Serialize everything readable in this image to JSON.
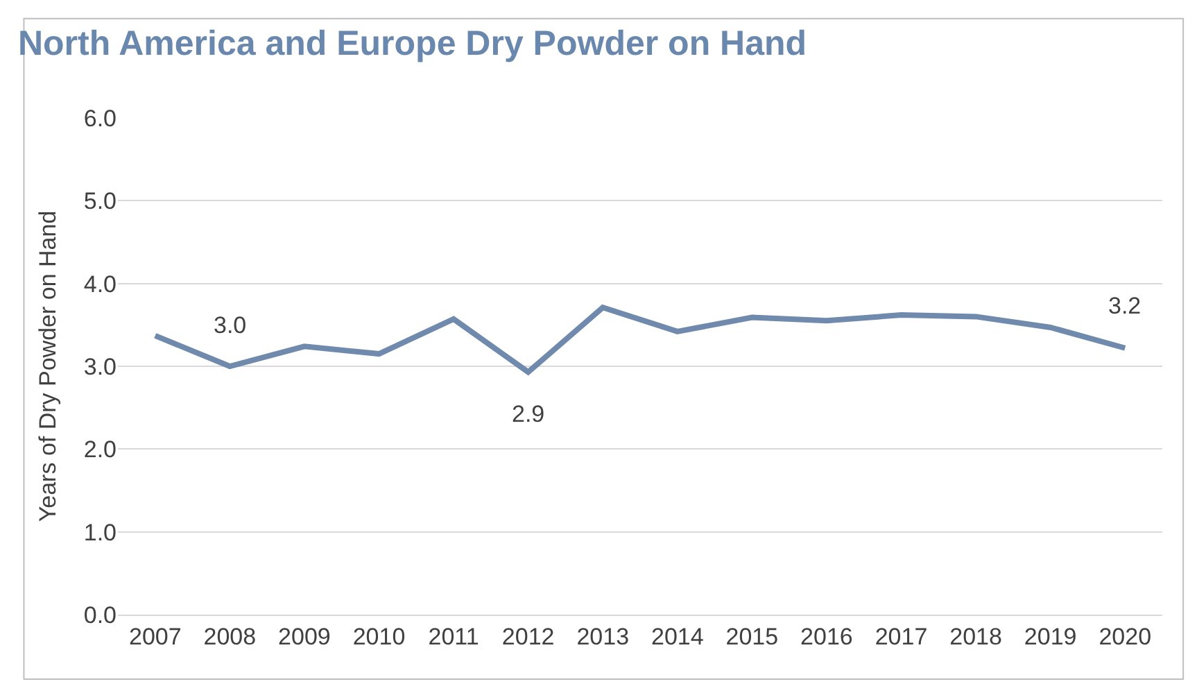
{
  "chart_data": {
    "type": "line",
    "title": "North America and Europe Dry Powder on Hand",
    "ylabel": "Years of Dry Powder on Hand",
    "categories": [
      "2007",
      "2008",
      "2009",
      "2010",
      "2011",
      "2012",
      "2013",
      "2014",
      "2015",
      "2016",
      "2017",
      "2018",
      "2019",
      "2020"
    ],
    "series": [
      {
        "color": "#6f8aad",
        "values": [
          3.37,
          3.0,
          3.24,
          3.15,
          3.57,
          2.93,
          3.71,
          3.42,
          3.59,
          3.55,
          3.62,
          3.6,
          3.47,
          3.22
        ],
        "value_labels": [
          null,
          "3.0",
          null,
          null,
          null,
          "2.9",
          null,
          null,
          null,
          null,
          null,
          null,
          null,
          "3.2"
        ]
      }
    ],
    "ylim": [
      0,
      6
    ],
    "yticks": [
      {
        "value": 0,
        "label": "0.0"
      },
      {
        "value": 1,
        "label": "1.0"
      },
      {
        "value": 2,
        "label": "2.0"
      },
      {
        "value": 3,
        "label": "3.0"
      },
      {
        "value": 4,
        "label": "4.0"
      },
      {
        "value": 5,
        "label": "5.0"
      },
      {
        "value": 6,
        "label": "6.0"
      }
    ],
    "grid": "y",
    "marker": "none",
    "line_style": "solid"
  }
}
